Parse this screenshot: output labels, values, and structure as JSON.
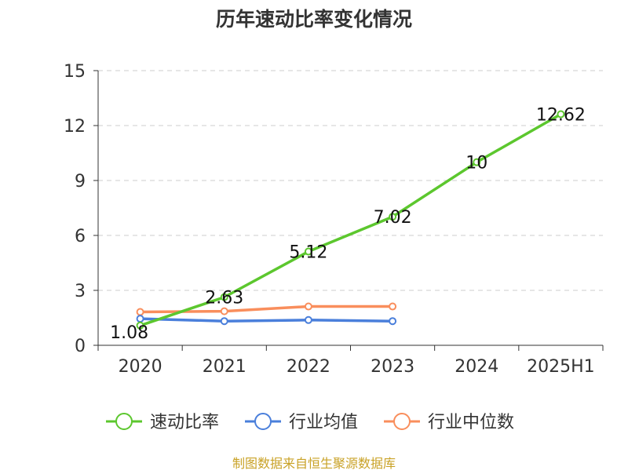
{
  "chart_data": {
    "type": "line",
    "title": "历年速动比率变化情况",
    "categories": [
      "2020",
      "2021",
      "2022",
      "2023",
      "2024",
      "2025H1"
    ],
    "ylim": [
      0,
      15
    ],
    "yticks": [
      0,
      3,
      6,
      9,
      12,
      15
    ],
    "grid": true,
    "legend_position": "bottom",
    "series": [
      {
        "name": "速动比率",
        "color": "#5cc72e",
        "values": [
          1.08,
          2.63,
          5.12,
          7.02,
          10,
          12.62
        ],
        "labels": [
          "1.08",
          "2.63",
          "5.12",
          "7.02",
          "10",
          "12.62"
        ]
      },
      {
        "name": "行业均值",
        "color": "#4a7fdb",
        "values": [
          1.45,
          1.32,
          1.38,
          1.32,
          null,
          null
        ]
      },
      {
        "name": "行业中位数",
        "color": "#f98e5c",
        "values": [
          1.82,
          1.86,
          2.12,
          2.12,
          null,
          null
        ]
      }
    ],
    "source": "制图数据来自恒生聚源数据库",
    "source_color": "#c9a227"
  }
}
